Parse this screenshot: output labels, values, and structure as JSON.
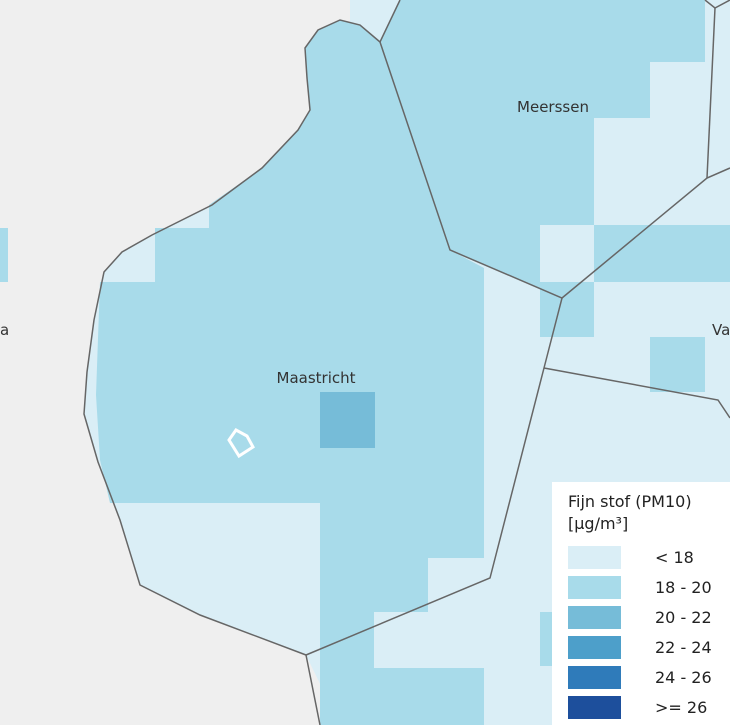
{
  "map": {
    "background_outside": "#efefef",
    "boundary_color": "#666666",
    "place_labels": [
      "Meerssen",
      "Maastricht",
      "Va",
      "a"
    ]
  },
  "legend": {
    "title_line1": "Fijn stof (PM10)",
    "title_line2": "[µg/m³]",
    "classes": [
      {
        "label": "< 18",
        "color": "#daeef6"
      },
      {
        "label": "18 - 20",
        "color": "#a8dbea"
      },
      {
        "label": "20 - 22",
        "color": "#76bcd8"
      },
      {
        "label": "22 - 24",
        "color": "#4d9fca"
      },
      {
        "label": "24 - 26",
        "color": "#2f7bba"
      },
      {
        "label": ">= 26",
        "color": "#1d4f9c"
      }
    ]
  }
}
